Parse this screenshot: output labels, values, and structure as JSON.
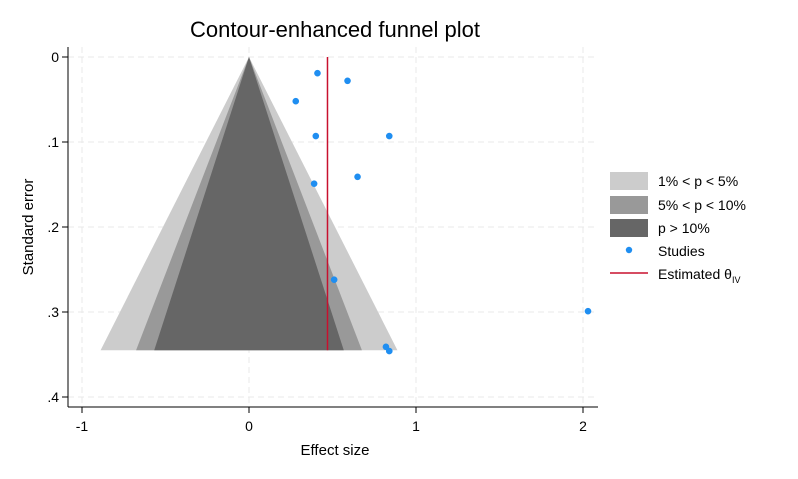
{
  "chart_data": {
    "type": "scatter",
    "title": "Contour-enhanced funnel plot",
    "xlabel": "Effect size",
    "ylabel": "Standard error",
    "xlim": [
      -1.05,
      2.1
    ],
    "ylim": [
      0,
      0.41
    ],
    "y_reversed": true,
    "grid": true,
    "legend_position": "right",
    "x_ticks": [
      {
        "value": -1,
        "label": "-1"
      },
      {
        "value": 0,
        "label": "0"
      },
      {
        "value": 1,
        "label": "1"
      },
      {
        "value": 2,
        "label": "2"
      }
    ],
    "y_ticks": [
      {
        "value": 0,
        "label": "0"
      },
      {
        "value": 0.1,
        "label": ".1"
      },
      {
        "value": 0.2,
        "label": ".2"
      },
      {
        "value": 0.3,
        "label": ".3"
      },
      {
        "value": 0.4,
        "label": ".4"
      }
    ],
    "contour_center": 0,
    "contour_se_max": 0.345,
    "contours": [
      {
        "name": "1% < p < 5%",
        "z": 2.576,
        "color": "#cccccc"
      },
      {
        "name": "5% < p < 10%",
        "z": 1.96,
        "color": "#999999"
      },
      {
        "name": "p > 10%",
        "z": 1.645,
        "color": "#666666"
      }
    ],
    "studies": {
      "name": "Studies",
      "color": "#1f8ef1",
      "points": [
        {
          "x": 0.41,
          "y": 0.019
        },
        {
          "x": 0.59,
          "y": 0.028
        },
        {
          "x": 0.28,
          "y": 0.052
        },
        {
          "x": 0.4,
          "y": 0.093
        },
        {
          "x": 0.84,
          "y": 0.093
        },
        {
          "x": 0.39,
          "y": 0.149
        },
        {
          "x": 0.65,
          "y": 0.141
        },
        {
          "x": 0.51,
          "y": 0.262
        },
        {
          "x": 2.03,
          "y": 0.299
        },
        {
          "x": 0.82,
          "y": 0.341
        },
        {
          "x": 0.84,
          "y": 0.346
        }
      ]
    },
    "estimate": {
      "name": "Estimated θ",
      "subscript": "IV",
      "value": 0.47,
      "color": "#c8102e"
    }
  }
}
